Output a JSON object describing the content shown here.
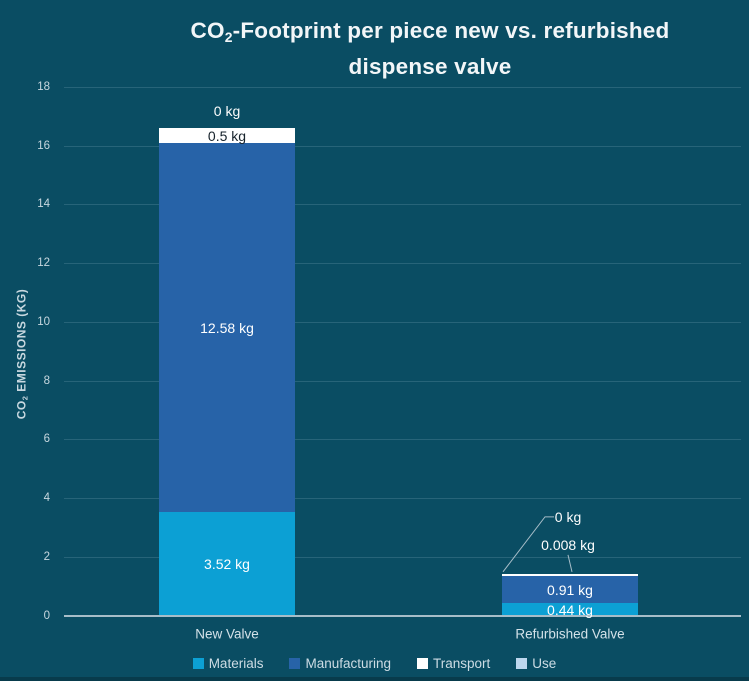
{
  "title": {
    "text": "CO₂-Footprint per piece new vs. refurbished dispense valve",
    "line1_pre": "CO",
    "line1_sub": "2",
    "line1_post": "-Footprint per piece new vs. refurbished",
    "line2": "dispense valve"
  },
  "y_axis": {
    "title_pre": "CO",
    "title_sub": "2",
    "title_post": " EMISSIONS (KG)"
  },
  "colors": {
    "background": "#0A4D63",
    "materials": "#0CA0D4",
    "manufacturing": "#2763A8",
    "transport": "#FFFFFF",
    "use": "#BDD7EE",
    "baseline": "#A7BDC8",
    "text_light": "#CDDCE4"
  },
  "chart_data": {
    "type": "bar",
    "stacked": true,
    "title": "CO₂-Footprint per piece new vs. refurbished dispense valve",
    "ylabel": "CO₂ EMISSIONS (KG)",
    "xlabel": "",
    "categories": [
      "New Valve",
      "Refurbished Valve"
    ],
    "series": [
      {
        "name": "Materials",
        "color": "#0CA0D4",
        "values": [
          3.52,
          0.44
        ],
        "labels": [
          "3.52 kg",
          "0.44 kg"
        ]
      },
      {
        "name": "Manufacturing",
        "color": "#2763A8",
        "values": [
          12.58,
          0.91
        ],
        "labels": [
          "12.58 kg",
          "0.91 kg"
        ]
      },
      {
        "name": "Transport",
        "color": "#FFFFFF",
        "values": [
          0.5,
          0.008
        ],
        "labels": [
          "0.5 kg",
          "0.008 kg"
        ]
      },
      {
        "name": "Use",
        "color": "#BDD7EE",
        "values": [
          0,
          0
        ],
        "labels": [
          "0 kg",
          "0 kg"
        ]
      }
    ],
    "totals": [
      16.6,
      1.358
    ],
    "ylim": [
      0,
      18
    ],
    "yticks": [
      0,
      2,
      4,
      6,
      8,
      10,
      12,
      14,
      16,
      18
    ],
    "grid": true,
    "legend_position": "bottom",
    "annotations": [
      {
        "category": 0,
        "series": "Use",
        "text": "0 kg",
        "placement": "above"
      },
      {
        "category": 1,
        "series": "Use",
        "text": "0 kg",
        "placement": "callout-upleft"
      },
      {
        "category": 1,
        "series": "Transport",
        "text": "0.008 kg",
        "placement": "callout-up"
      }
    ]
  }
}
